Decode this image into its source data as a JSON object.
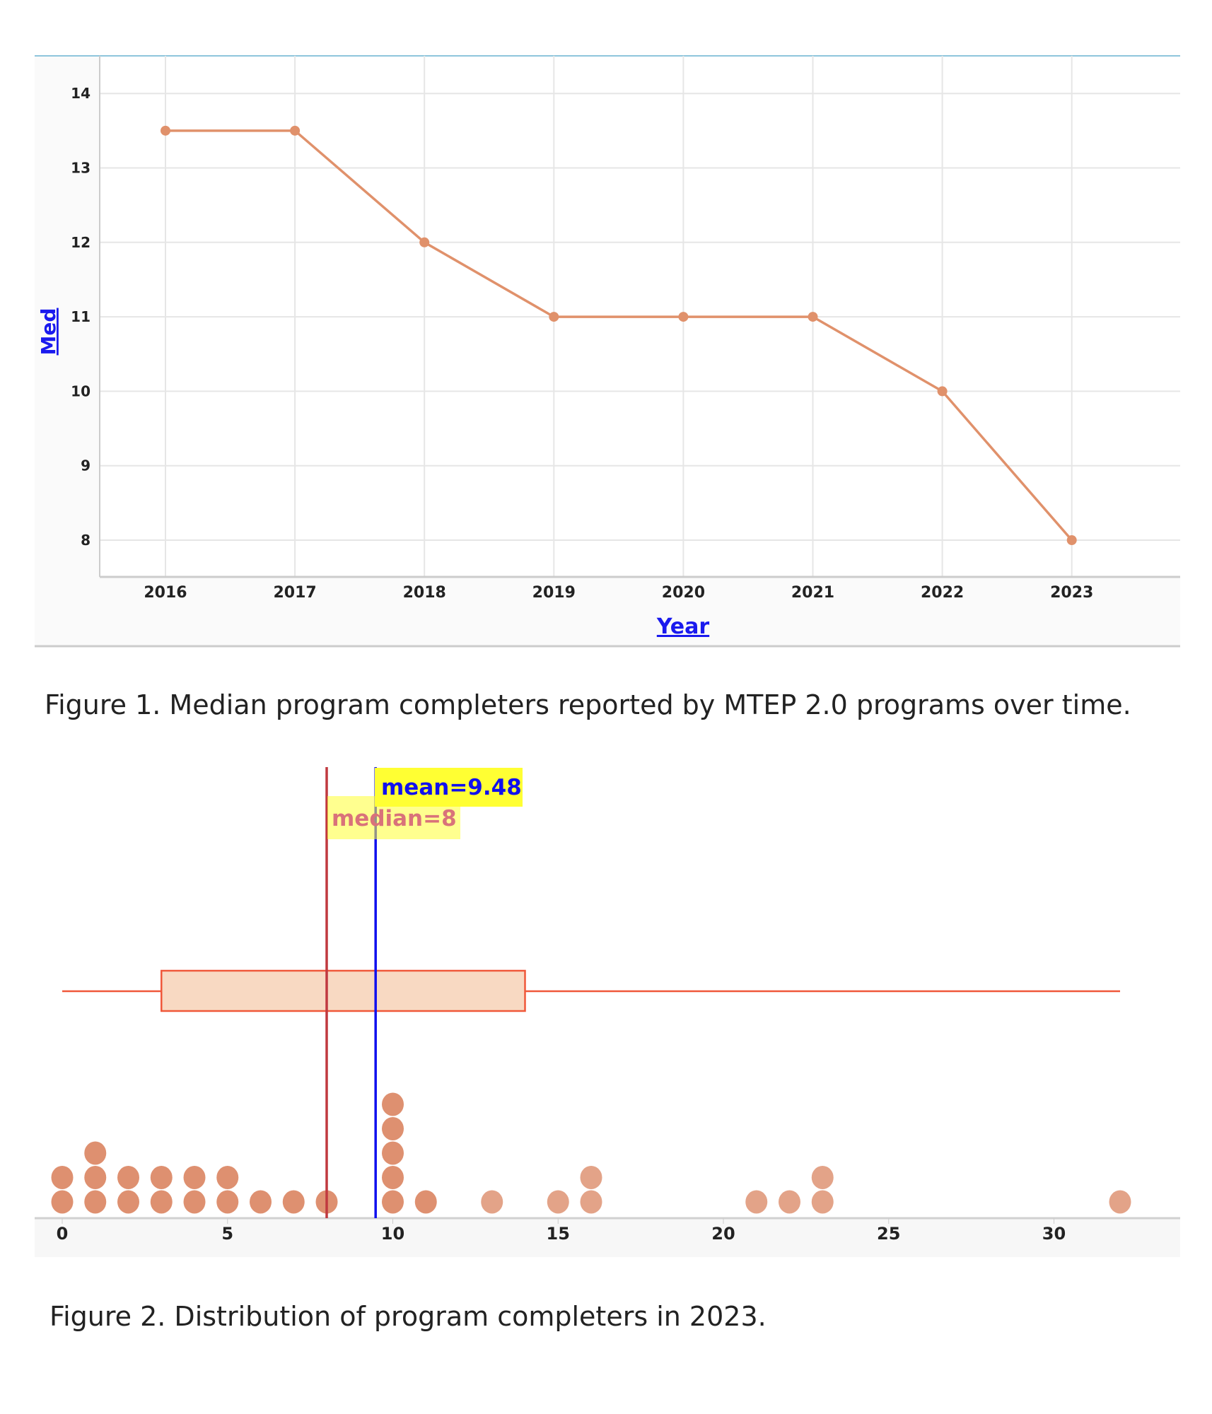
{
  "chart_data": [
    {
      "type": "line",
      "title": "",
      "xlabel": "Year",
      "ylabel": "Med",
      "x": [
        2016,
        2017,
        2018,
        2019,
        2020,
        2021,
        2022,
        2023
      ],
      "series": [
        {
          "name": "Med",
          "values": [
            13.5,
            13.5,
            12,
            11,
            11,
            11,
            10,
            8
          ]
        }
      ],
      "yticks": [
        8,
        9,
        10,
        11,
        12,
        13,
        14
      ],
      "ylim": [
        7.5,
        14.5
      ],
      "grid": true,
      "color": "#e0916b"
    },
    {
      "type": "scatter",
      "subtype": "dot-plot with box plot",
      "title": "",
      "xlabel": "",
      "xticks": [
        0,
        5,
        10,
        15,
        20,
        25,
        30
      ],
      "xlim": [
        0,
        33
      ],
      "points": [
        {
          "value": 0,
          "count": 2
        },
        {
          "value": 1,
          "count": 3
        },
        {
          "value": 2,
          "count": 2
        },
        {
          "value": 3,
          "count": 2
        },
        {
          "value": 4,
          "count": 2
        },
        {
          "value": 5,
          "count": 2
        },
        {
          "value": 6,
          "count": 1
        },
        {
          "value": 7,
          "count": 1
        },
        {
          "value": 8,
          "count": 1
        },
        {
          "value": 10,
          "count": 5
        },
        {
          "value": 11,
          "count": 1
        },
        {
          "value": 13,
          "count": 1
        },
        {
          "value": 15,
          "count": 1
        },
        {
          "value": 16,
          "count": 2
        },
        {
          "value": 21,
          "count": 1
        },
        {
          "value": 22,
          "count": 1
        },
        {
          "value": 23,
          "count": 2
        },
        {
          "value": 32,
          "count": 1
        }
      ],
      "box": {
        "min": 0,
        "q1": 3,
        "median": 8,
        "q3": 14,
        "max": 32
      },
      "mean": 9.48,
      "median": 8,
      "mean_label": "mean=9.48",
      "median_label": "median=8",
      "colors": {
        "dot": "#de9070",
        "box_fill": "#f8d9c2",
        "box_stroke": "#f0583a",
        "mean": "#1010ee",
        "median": "#c0393f",
        "label_bg": "#ffff33"
      }
    }
  ],
  "captions": {
    "figure1": "Figure 1. Median program completers reported by MTEP 2.0 programs over time.",
    "figure2": "Figure 2. Distribution of program completers in 2023."
  }
}
